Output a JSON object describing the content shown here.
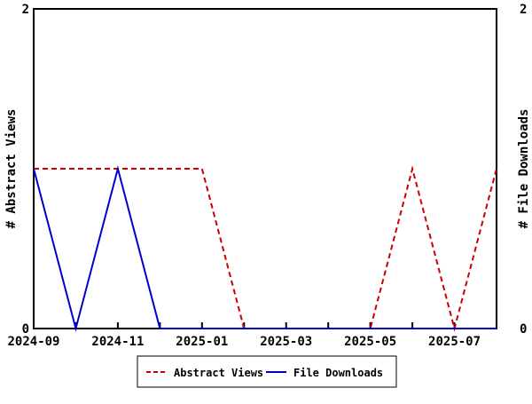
{
  "chart_data": {
    "type": "line",
    "title": "",
    "x_categories": [
      "2024-09",
      "2024-10",
      "2024-11",
      "2024-12",
      "2025-01",
      "2025-02",
      "2025-03",
      "2025-04",
      "2025-05",
      "2025-06",
      "2025-07",
      "2025-08"
    ],
    "x_tick_labels": [
      "2024-09",
      "2024-11",
      "2025-01",
      "2025-03",
      "2025-05",
      "2025-07"
    ],
    "series": [
      {
        "name": "Abstract Views",
        "axis": "left",
        "color": "#cc0000",
        "style": "dashed",
        "values": [
          1,
          1,
          1,
          1,
          1,
          0,
          0,
          0,
          0,
          1,
          0,
          1
        ]
      },
      {
        "name": "File Downloads",
        "axis": "right",
        "color": "#0000cc",
        "style": "solid",
        "values": [
          1,
          0,
          1,
          0,
          0,
          0,
          0,
          0,
          0,
          0,
          0,
          0
        ]
      }
    ],
    "y_left": {
      "label": "# Abstract Views",
      "min": 0,
      "max": 2,
      "ticks": [
        0,
        2
      ]
    },
    "y_right": {
      "label": "# File Downloads",
      "min": 0,
      "max": 2,
      "ticks": [
        0,
        2
      ]
    },
    "legend": {
      "position": "bottom",
      "entries": [
        "Abstract Views",
        "File Downloads"
      ]
    },
    "colors": {
      "axis": "#000000",
      "background": "#ffffff"
    },
    "grid": false
  }
}
